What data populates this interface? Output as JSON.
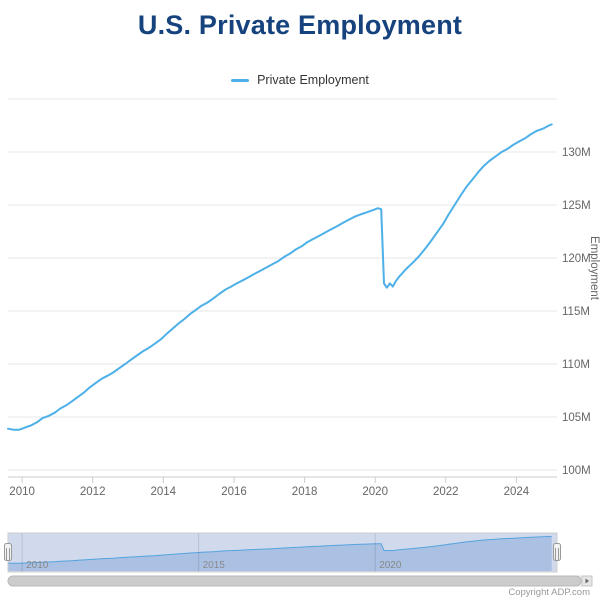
{
  "title": "U.S. Private Employment",
  "legend": {
    "label": "Private Employment"
  },
  "credits": {
    "label": "Copyright ADP.com"
  },
  "colors": {
    "title": "#16437e",
    "line": "#4db0e8",
    "grid": "#e7e7e7",
    "axis_line": "#cccccc",
    "label": "#666666",
    "nav_area": "#c9dcf2",
    "nav_mask": "rgba(102,133,194,0.3)",
    "nav_outline": "#cccccc",
    "scrollbar": "#cccccc"
  },
  "chart_data": {
    "type": "line",
    "title": "U.S. Private Employment",
    "ylabel": "Employment",
    "unit": "millions of jobs",
    "legend_position": "top",
    "grid": "horizontal",
    "x_range": [
      2009.6,
      2025.15
    ],
    "y_range": [
      100,
      135
    ],
    "yaxis_title": "Employment",
    "y_gridlines": [
      100,
      105,
      110,
      115,
      120,
      125,
      130,
      135
    ],
    "y_ticks": [
      {
        "value": 100,
        "label": "100M"
      },
      {
        "value": 105,
        "label": "105M"
      },
      {
        "value": 110,
        "label": "110M"
      },
      {
        "value": 115,
        "label": "115M"
      },
      {
        "value": 120,
        "label": "120M"
      },
      {
        "value": 125,
        "label": "125M"
      },
      {
        "value": 130,
        "label": "130M"
      }
    ],
    "x_ticks": [
      {
        "value": 2010,
        "label": "2010"
      },
      {
        "value": 2012,
        "label": "2012"
      },
      {
        "value": 2014,
        "label": "2014"
      },
      {
        "value": 2016,
        "label": "2016"
      },
      {
        "value": 2018,
        "label": "2018"
      },
      {
        "value": 2020,
        "label": "2020"
      },
      {
        "value": 2022,
        "label": "2022"
      },
      {
        "value": 2024,
        "label": "2024"
      }
    ],
    "navigator_ticks": [
      {
        "value": 2010,
        "label": "2010"
      },
      {
        "value": 2015,
        "label": "2015"
      },
      {
        "value": 2020,
        "label": "2020"
      }
    ],
    "series": [
      {
        "name": "Private Employment",
        "color": "#4db0e8",
        "points": [
          [
            2009.6,
            103.9
          ],
          [
            2009.75,
            103.8
          ],
          [
            2009.92,
            103.8
          ],
          [
            2010.0,
            103.9
          ],
          [
            2010.08,
            104.0
          ],
          [
            2010.25,
            104.2
          ],
          [
            2010.42,
            104.5
          ],
          [
            2010.58,
            104.9
          ],
          [
            2010.75,
            105.1
          ],
          [
            2010.92,
            105.4
          ],
          [
            2011.08,
            105.8
          ],
          [
            2011.25,
            106.1
          ],
          [
            2011.42,
            106.5
          ],
          [
            2011.58,
            106.9
          ],
          [
            2011.75,
            107.3
          ],
          [
            2011.92,
            107.8
          ],
          [
            2012.08,
            108.2
          ],
          [
            2012.25,
            108.6
          ],
          [
            2012.42,
            108.9
          ],
          [
            2012.58,
            109.2
          ],
          [
            2012.75,
            109.6
          ],
          [
            2012.92,
            110.0
          ],
          [
            2013.08,
            110.4
          ],
          [
            2013.25,
            110.8
          ],
          [
            2013.42,
            111.2
          ],
          [
            2013.58,
            111.5
          ],
          [
            2013.75,
            111.9
          ],
          [
            2013.92,
            112.3
          ],
          [
            2014.08,
            112.8
          ],
          [
            2014.25,
            113.3
          ],
          [
            2014.42,
            113.8
          ],
          [
            2014.58,
            114.2
          ],
          [
            2014.75,
            114.7
          ],
          [
            2014.92,
            115.1
          ],
          [
            2015.08,
            115.5
          ],
          [
            2015.25,
            115.8
          ],
          [
            2015.42,
            116.2
          ],
          [
            2015.58,
            116.6
          ],
          [
            2015.75,
            117.0
          ],
          [
            2015.92,
            117.3
          ],
          [
            2016.08,
            117.6
          ],
          [
            2016.25,
            117.9
          ],
          [
            2016.42,
            118.2
          ],
          [
            2016.58,
            118.5
          ],
          [
            2016.75,
            118.8
          ],
          [
            2016.92,
            119.1
          ],
          [
            2017.08,
            119.4
          ],
          [
            2017.25,
            119.7
          ],
          [
            2017.42,
            120.1
          ],
          [
            2017.58,
            120.4
          ],
          [
            2017.75,
            120.8
          ],
          [
            2017.92,
            121.1
          ],
          [
            2018.08,
            121.5
          ],
          [
            2018.25,
            121.8
          ],
          [
            2018.42,
            122.1
          ],
          [
            2018.58,
            122.4
          ],
          [
            2018.75,
            122.7
          ],
          [
            2018.92,
            123.0
          ],
          [
            2019.08,
            123.3
          ],
          [
            2019.25,
            123.6
          ],
          [
            2019.42,
            123.9
          ],
          [
            2019.58,
            124.1
          ],
          [
            2019.75,
            124.3
          ],
          [
            2019.92,
            124.5
          ],
          [
            2020.08,
            124.7
          ],
          [
            2020.17,
            124.6
          ],
          [
            2020.25,
            117.6
          ],
          [
            2020.33,
            117.2
          ],
          [
            2020.42,
            117.6
          ],
          [
            2020.5,
            117.3
          ],
          [
            2020.58,
            117.8
          ],
          [
            2020.67,
            118.2
          ],
          [
            2020.75,
            118.5
          ],
          [
            2020.83,
            118.8
          ],
          [
            2020.92,
            119.1
          ],
          [
            2021.08,
            119.6
          ],
          [
            2021.25,
            120.2
          ],
          [
            2021.42,
            120.9
          ],
          [
            2021.58,
            121.6
          ],
          [
            2021.75,
            122.4
          ],
          [
            2021.92,
            123.2
          ],
          [
            2022.08,
            124.1
          ],
          [
            2022.25,
            125.0
          ],
          [
            2022.42,
            125.9
          ],
          [
            2022.58,
            126.7
          ],
          [
            2022.75,
            127.4
          ],
          [
            2022.92,
            128.1
          ],
          [
            2023.08,
            128.7
          ],
          [
            2023.25,
            129.2
          ],
          [
            2023.42,
            129.6
          ],
          [
            2023.58,
            130.0
          ],
          [
            2023.75,
            130.3
          ],
          [
            2023.92,
            130.7
          ],
          [
            2024.08,
            131.0
          ],
          [
            2024.25,
            131.3
          ],
          [
            2024.42,
            131.7
          ],
          [
            2024.58,
            132.0
          ],
          [
            2024.75,
            132.2
          ],
          [
            2024.92,
            132.5
          ],
          [
            2025.0,
            132.6
          ]
        ]
      }
    ]
  }
}
